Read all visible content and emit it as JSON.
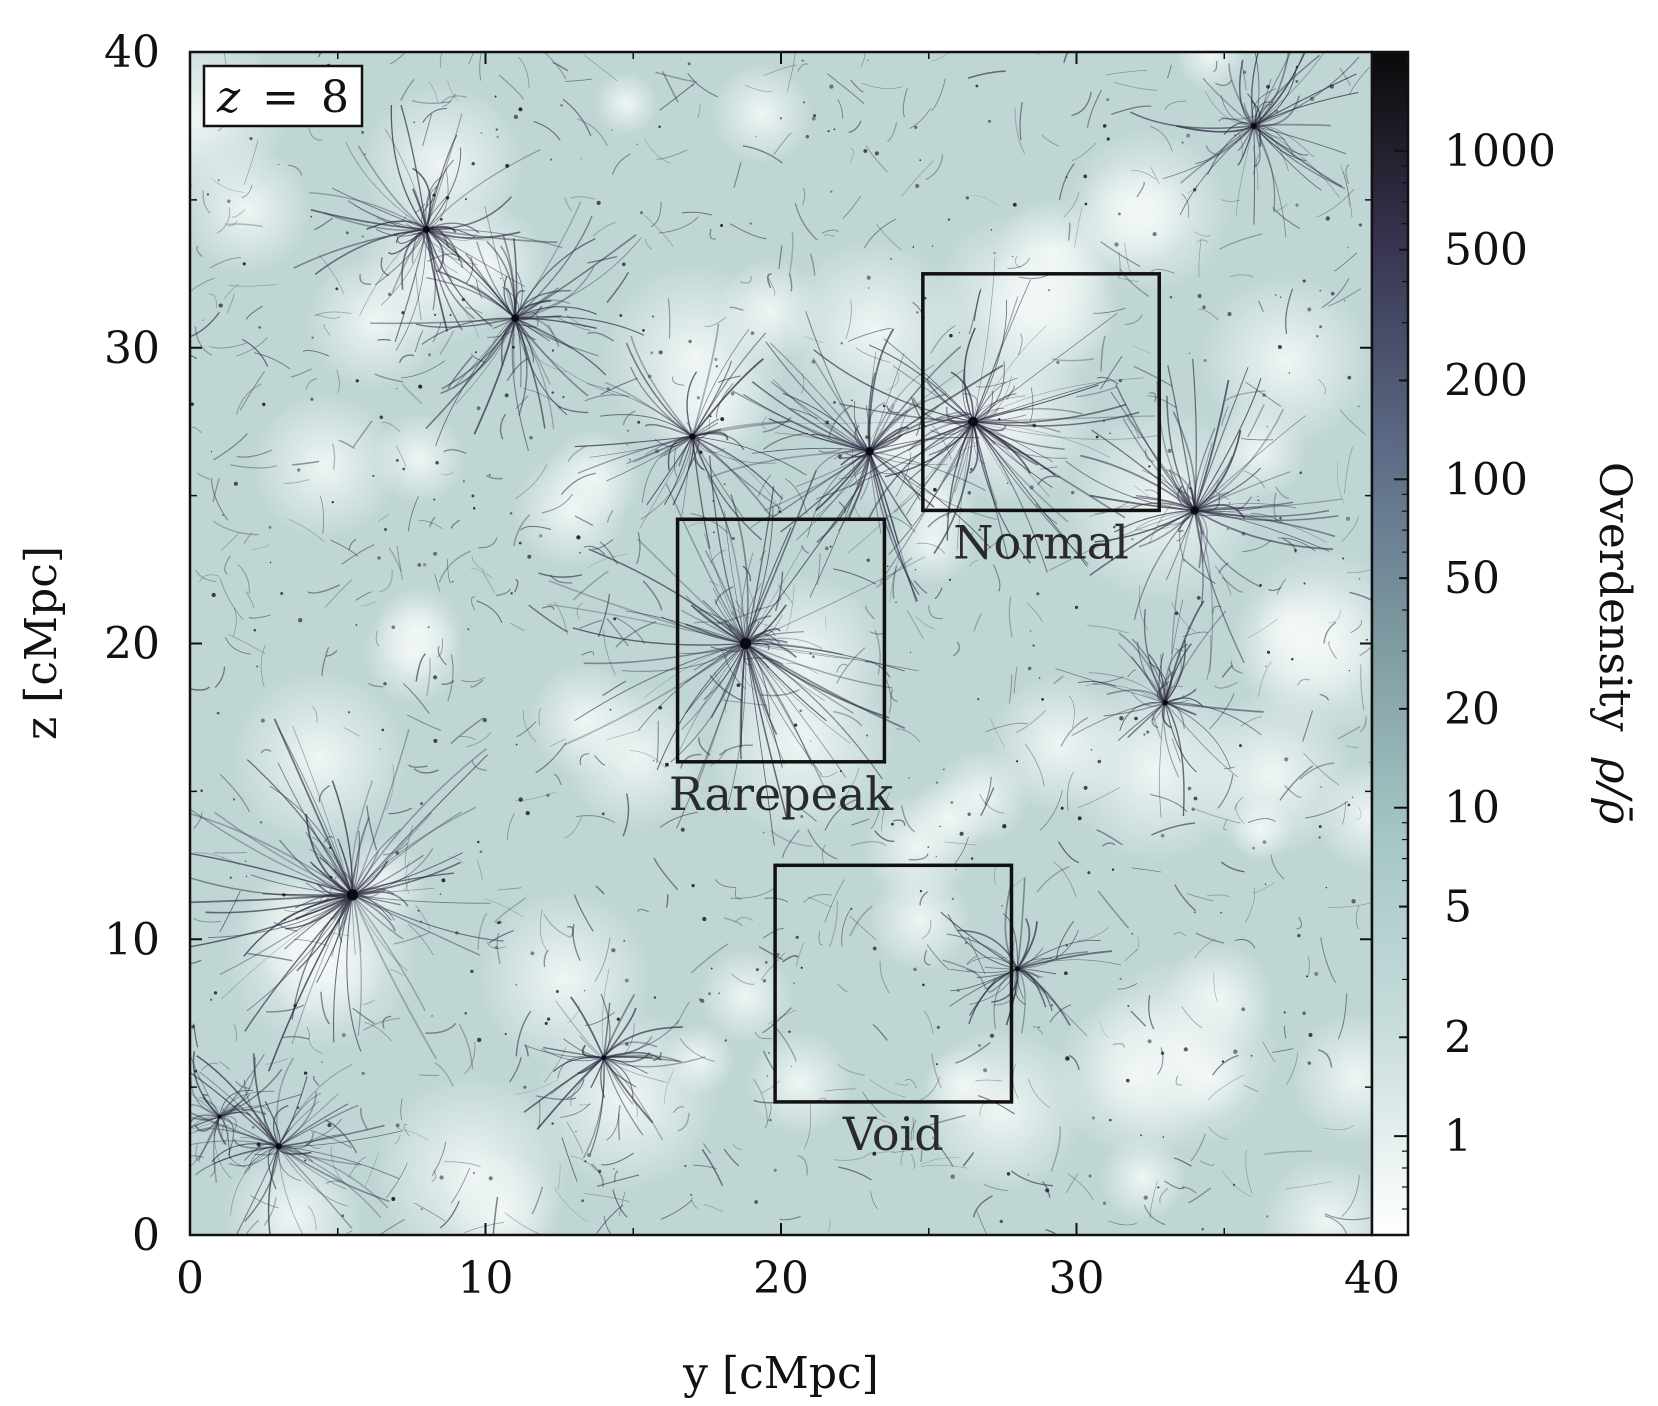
{
  "chart_data": {
    "type": "heatmap",
    "title": "",
    "annotation": {
      "variable": "z",
      "relation": "=",
      "value": "8"
    },
    "xlabel": "y [cMpc]",
    "ylabel": "z [cMpc]",
    "xlim": [
      0,
      40
    ],
    "ylim": [
      0,
      40
    ],
    "x_ticks": [
      "0",
      "10",
      "20",
      "30",
      "40"
    ],
    "y_ticks": [
      "0",
      "10",
      "20",
      "30",
      "40"
    ],
    "colorbar": {
      "label_prefix": "Overdensity",
      "label_math": "ρ/ρ̄",
      "scale": "log",
      "range": [
        0.5,
        2000
      ],
      "ticks": [
        "1",
        "2",
        "5",
        "10",
        "20",
        "50",
        "100",
        "200",
        "500",
        "1000"
      ],
      "colormap": [
        "#ffffff",
        "#c9dedd",
        "#a6c7c6",
        "#7f9ba2",
        "#5c6a85",
        "#383652",
        "#0a0a0a"
      ]
    },
    "regions": [
      {
        "name": "Normal",
        "y_range": [
          24.8,
          32.8
        ],
        "z_range": [
          24.5,
          32.5
        ]
      },
      {
        "name": "Rarepeak",
        "y_range": [
          16.5,
          23.5
        ],
        "z_range": [
          16.0,
          24.2
        ]
      },
      {
        "name": "Void",
        "y_range": [
          19.8,
          27.8
        ],
        "z_range": [
          4.5,
          12.5
        ]
      }
    ],
    "background_colors": {
      "low_density": "#e8f1f0",
      "mid_density": "#bfd6d5",
      "filament": "#2c2a40"
    }
  }
}
